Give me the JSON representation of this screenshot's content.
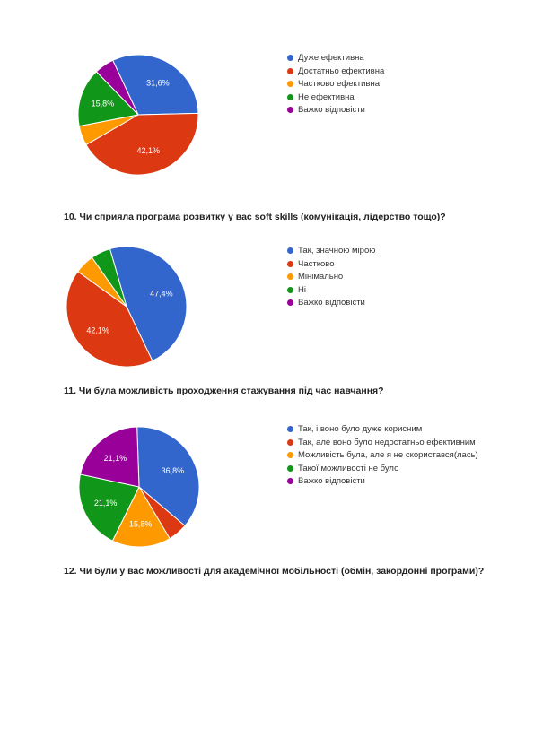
{
  "questions": {
    "q10": "10. Чи сприяла програма розвитку у вас soft skills (комунікація, лідерство тощо)?",
    "q11": "11. Чи була можливість проходження стажування під час навчання?",
    "q12": "12. Чи були у вас можливості для академічної мобільності (обмін, закордонні програми)?"
  },
  "chart_data": [
    {
      "type": "pie",
      "categories": [
        "Дуже ефективна",
        "Достатньо ефективна",
        "Частково ефективна",
        "Не ефективна",
        "Важко відповісти"
      ],
      "values": [
        31.6,
        42.1,
        5.3,
        15.8,
        5.3
      ],
      "data_labels": [
        "31,6%",
        "42,1%",
        "",
        "15,8%",
        ""
      ],
      "colors": [
        "#3366cc",
        "#dc3912",
        "#ff9900",
        "#109618",
        "#990099"
      ],
      "legend_position": "right"
    },
    {
      "type": "pie",
      "categories": [
        "Так, значною мірою",
        "Частково",
        "Мінімально",
        "Ні",
        "Важко відповісти"
      ],
      "values": [
        47.4,
        42.1,
        5.3,
        5.3,
        0
      ],
      "data_labels": [
        "47,4%",
        "42,1%",
        "",
        "",
        ""
      ],
      "colors": [
        "#3366cc",
        "#dc3912",
        "#ff9900",
        "#109618",
        "#990099"
      ],
      "legend_position": "right"
    },
    {
      "type": "pie",
      "categories": [
        "Так, і воно було дуже корисним",
        "Так, але воно було недостатньо ефективним",
        "Можливість була, але я не скористався(лась)",
        "Такої можливості не було",
        "Важко відповісти"
      ],
      "values": [
        36.8,
        5.3,
        15.8,
        21.1,
        21.1
      ],
      "data_labels": [
        "36,8%",
        "",
        "15,8%",
        "21,1%",
        "21,1%"
      ],
      "colors": [
        "#3366cc",
        "#dc3912",
        "#ff9900",
        "#109618",
        "#990099"
      ],
      "legend_position": "right"
    }
  ]
}
